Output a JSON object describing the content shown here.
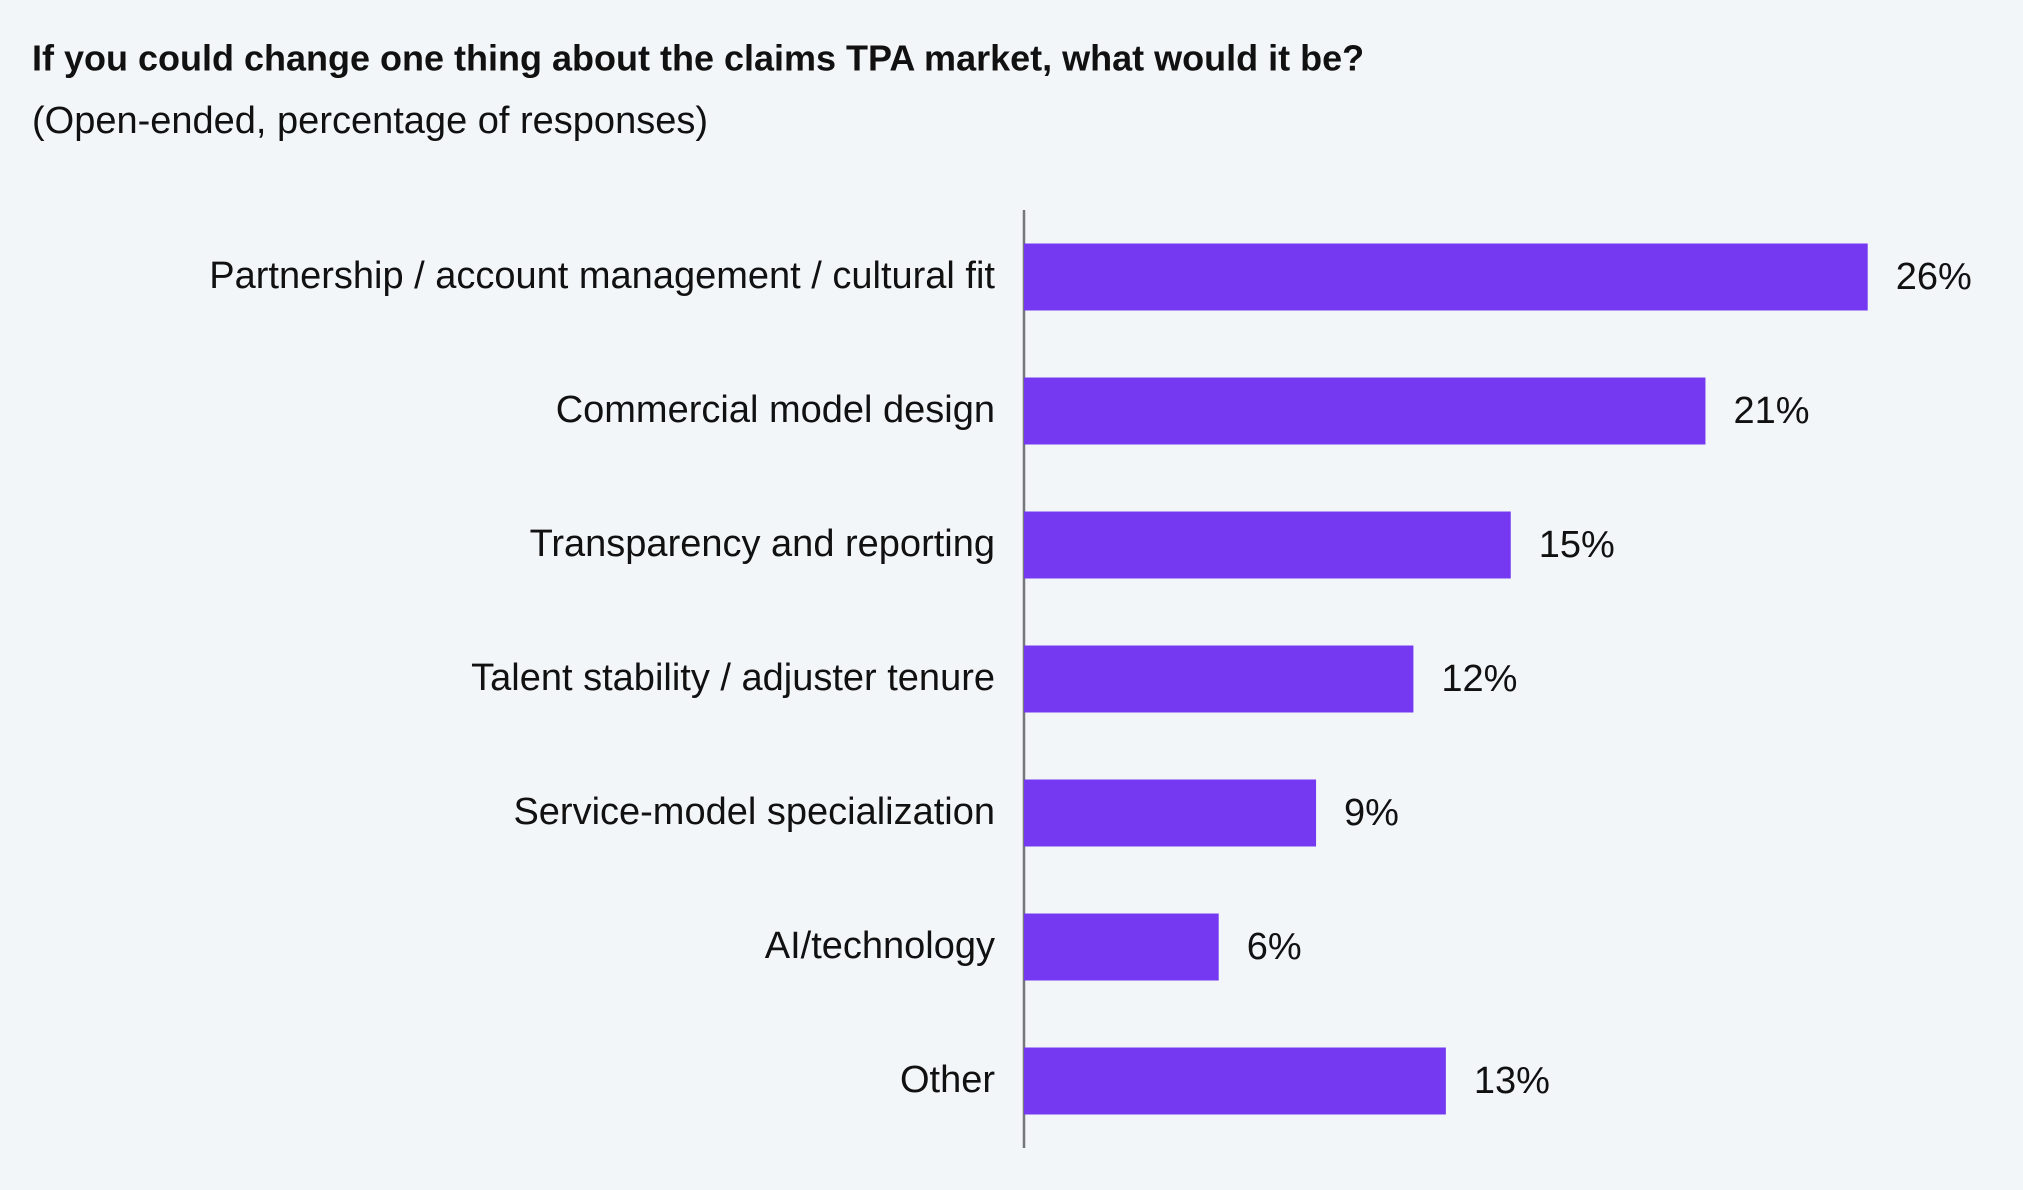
{
  "chart_data": {
    "type": "hbar",
    "title": "If you could change one thing about the claims TPA market, what would it be?",
    "subtitle": "(Open-ended, percentage of responses)",
    "categories": [
      "Partnership / account management / cultural fit",
      "Commercial model design",
      "Transparency and reporting",
      "Talent stability / adjuster tenure",
      "Service-model specialization",
      "AI/technology",
      "Other"
    ],
    "values": [
      26,
      21,
      15,
      12,
      9,
      6,
      13
    ],
    "value_labels": [
      "26%",
      "21%",
      "15%",
      "12%",
      "9%",
      "6%",
      "13%"
    ],
    "color": "#7439f0"
  }
}
